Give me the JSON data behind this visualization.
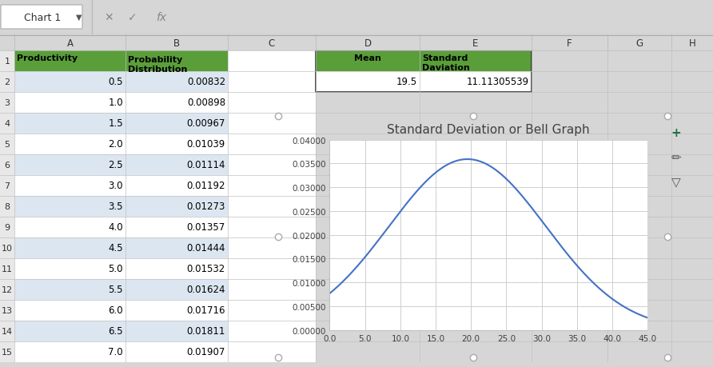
{
  "title": "Standard Deviation or Bell Graph",
  "mean": 19.5,
  "std": 11.11305539,
  "x_min": 0.0,
  "x_max": 45.0,
  "x_ticks": [
    0.0,
    5.0,
    10.0,
    15.0,
    20.0,
    25.0,
    30.0,
    35.0,
    40.0,
    45.0
  ],
  "y_min": 0.0,
  "y_max": 0.04,
  "y_ticks": [
    0.0,
    0.005,
    0.01,
    0.015,
    0.02,
    0.025,
    0.03,
    0.035,
    0.04
  ],
  "y_tick_labels": [
    "0.00000",
    "0.00500",
    "0.01000",
    "0.01500",
    "0.02000",
    "0.02500",
    "0.03000",
    "0.03500",
    "0.04000"
  ],
  "line_color": "#4472C4",
  "line_width": 1.5,
  "chart_bg": "#ffffff",
  "excel_bg": "#d6d6d6",
  "grid_color": "#c8c8c8",
  "title_fontsize": 11,
  "tick_fontsize": 7.5,
  "fig_width": 8.92,
  "fig_height": 4.6,
  "green_header": "#5a9e3a",
  "col_header_bg": "#e8e8e8",
  "row_header_bg": "#e8e8e8",
  "cell_bg": "#ffffff",
  "alt_cell_bg": "#dce6f1",
  "table_data": [
    [
      0.5,
      0.00832
    ],
    [
      1.0,
      0.00898
    ],
    [
      1.5,
      0.00967
    ],
    [
      2.0,
      0.01039
    ],
    [
      2.5,
      0.01114
    ],
    [
      3.0,
      0.01192
    ],
    [
      3.5,
      0.01273
    ],
    [
      4.0,
      0.01357
    ],
    [
      4.5,
      0.01444
    ],
    [
      5.0,
      0.01532
    ],
    [
      5.5,
      0.01624
    ],
    [
      6.0,
      0.01716
    ],
    [
      6.5,
      0.01811
    ],
    [
      7.0,
      0.01907
    ]
  ],
  "formula_bar_bg": "#f0f0f0",
  "toolbar_bg": "#f0f0f0"
}
